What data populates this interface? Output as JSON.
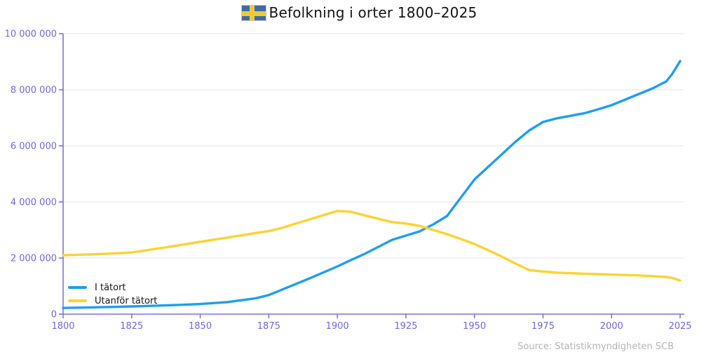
{
  "header": {
    "title": "Befolkning i orter 1800–2025",
    "flag_icon": "swedish-flag-icon"
  },
  "legend": {
    "items": [
      {
        "label": "I tätort",
        "color": "#1e9ef0"
      },
      {
        "label": "Utanför tätort",
        "color": "#fdd330"
      }
    ]
  },
  "source": "Source: Statistikmyndigheten SCB",
  "colors": {
    "series_urban": "#1e9ef0",
    "series_rural": "#fdd330",
    "axis": "#7a72ea",
    "tick_label": "#6f66e6",
    "grid": "#eae8fb",
    "title_text": "#141414",
    "source_text": "#b5b5b5",
    "flag_blue": "#3d6ca6",
    "flag_yellow": "#f3c837"
  },
  "chart_data": {
    "type": "line",
    "title": "Befolkning i orter 1800–2025",
    "xlabel": "",
    "ylabel": "",
    "xlim": [
      1800,
      2025
    ],
    "ylim": [
      0,
      10000000
    ],
    "grid": "horizontal",
    "legend_position": "lower-left",
    "x_ticks": [
      1800,
      1825,
      1850,
      1875,
      1900,
      1925,
      1950,
      1975,
      2000,
      2025
    ],
    "y_ticks": [
      {
        "value": 0,
        "label": "0"
      },
      {
        "value": 2000000,
        "label": "2 000 000"
      },
      {
        "value": 4000000,
        "label": "4 000 000"
      },
      {
        "value": 6000000,
        "label": "6 000 000"
      },
      {
        "value": 8000000,
        "label": "8 000 000"
      },
      {
        "value": 10000000,
        "label": "10 000 000"
      }
    ],
    "x": [
      1800,
      1810,
      1820,
      1825,
      1830,
      1840,
      1850,
      1860,
      1870,
      1875,
      1880,
      1890,
      1900,
      1905,
      1910,
      1920,
      1925,
      1930,
      1935,
      1940,
      1945,
      1950,
      1955,
      1960,
      1965,
      1970,
      1975,
      1980,
      1985,
      1990,
      1995,
      2000,
      2005,
      2010,
      2015,
      2020,
      2022,
      2025
    ],
    "series": [
      {
        "name": "I tätort",
        "color": "#1e9ef0",
        "values": [
          220000,
          240000,
          260000,
          275000,
          290000,
          320000,
          360000,
          430000,
          560000,
          680000,
          880000,
          1280000,
          1700000,
          1930000,
          2150000,
          2650000,
          2800000,
          2950000,
          3200000,
          3500000,
          4150000,
          4800000,
          5250000,
          5700000,
          6150000,
          6550000,
          6850000,
          6980000,
          7070000,
          7160000,
          7300000,
          7450000,
          7650000,
          7850000,
          8050000,
          8300000,
          8550000,
          9020000
        ]
      },
      {
        "name": "Utanför tätort",
        "color": "#fdd330",
        "values": [
          2100000,
          2130000,
          2170000,
          2200000,
          2270000,
          2420000,
          2580000,
          2730000,
          2890000,
          2960000,
          3080000,
          3380000,
          3680000,
          3650000,
          3520000,
          3280000,
          3230000,
          3150000,
          3000000,
          2850000,
          2680000,
          2500000,
          2280000,
          2050000,
          1800000,
          1570000,
          1520000,
          1480000,
          1460000,
          1440000,
          1425000,
          1410000,
          1395000,
          1380000,
          1355000,
          1325000,
          1290000,
          1200000
        ]
      }
    ]
  }
}
